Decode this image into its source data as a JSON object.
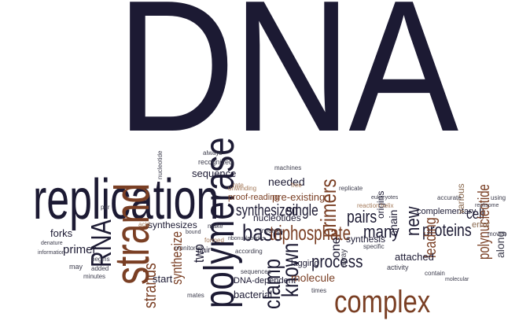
{
  "cloud": {
    "title": "DNA",
    "words": {
      "replication": "replication",
      "strand": "strand",
      "polymerase": "polymerase",
      "complex": "complex",
      "rna": "RNA",
      "base": "base",
      "known": "known",
      "triphosphate": "triphosphate",
      "clamp": "clamp",
      "primers": "primers",
      "pairs": "pairs",
      "process": "process",
      "many": "many",
      "new": "new",
      "proteins": "proteins",
      "cell": "cell",
      "leading": "leading",
      "polynucleotide": "polynucleotide",
      "along": "along",
      "strands": "strands",
      "synthesize": "synthesize",
      "two": "two",
      "synthesized": "synthesized",
      "single": "single",
      "needed": "needed",
      "pre_existing": "pre-existing",
      "proof_reading": "proof-reading",
      "nucleotides": "nucleotides",
      "molecule": "molecule",
      "lagging": "lagging",
      "bacterial": "bacterial",
      "chain": "chain",
      "attached": "attached",
      "complementary": "complementary",
      "various": "various",
      "error": "error",
      "origins": "origins",
      "synthesis": "synthesis",
      "sequence": "sequence",
      "primer": "primer",
      "forks": "forks",
      "start": "start",
      "synthesizes": "synthesizes",
      "dna_dependent": "DNA-dependent",
      "one": "one",
      "recognized": "recognized",
      "always": "always",
      "unwinding": "unwinding",
      "machines": "machines",
      "replicate": "replicate",
      "reaction": "reaction",
      "helix": "helix",
      "specific": "specific",
      "activity": "activity",
      "accurate": "accurate",
      "contain": "contain",
      "moves": "moves",
      "using": "using",
      "times": "times",
      "added": "added",
      "begins": "begins",
      "may": "may",
      "minutes": "minutes",
      "involves": "involves",
      "per": "per",
      "pair": "pair",
      "nucleotide": "nucleotide",
      "make": "make",
      "away": "away",
      "formed": "formed",
      "sequences": "sequences",
      "according": "according",
      "rate": "rate",
      "eukaryotes": "eukaryotes",
      "denature": "denature",
      "information": "information",
      "acid": "acid",
      "monitored": "monitored",
      "mates": "mates",
      "free": "free",
      "bound": "bound",
      "ribonucleotides": "ribonucleotides",
      "molecular": "molecular",
      "replisome": "replisome"
    }
  }
}
